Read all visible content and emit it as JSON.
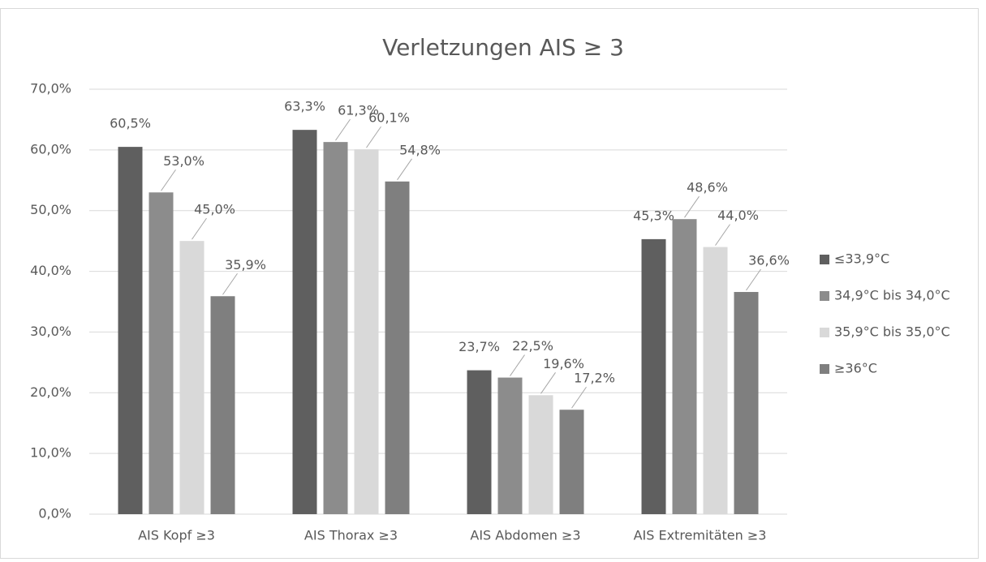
{
  "chart_data": {
    "type": "bar",
    "title": "Verletzungen AIS ≥ 3",
    "categories": [
      "AIS Kopf ≥3",
      "AIS Thorax ≥3",
      "AIS Abdomen ≥3",
      "AIS Extremitäten ≥3"
    ],
    "series": [
      {
        "name": "≤33,9°C",
        "color": "#5f5f5f",
        "values": [
          60.5,
          63.3,
          23.7,
          45.3
        ],
        "value_labels": [
          "60,5%",
          "63,3%",
          "23,7%",
          "45,3%"
        ]
      },
      {
        "name": "34,9°C bis 34,0°C",
        "color": "#8c8c8c",
        "values": [
          53.0,
          61.3,
          22.5,
          48.6
        ],
        "value_labels": [
          "53,0%",
          "61,3%",
          "22,5%",
          "48,6%"
        ]
      },
      {
        "name": "35,9°C bis 35,0°C",
        "color": "#d9d9d9",
        "values": [
          45.0,
          60.1,
          19.6,
          44.0
        ],
        "value_labels": [
          "45,0%",
          "60,1%",
          "19,6%",
          "44,0%"
        ]
      },
      {
        "name": "≥36°C",
        "color": "#7f7f7f",
        "values": [
          35.9,
          54.8,
          17.2,
          36.6
        ],
        "value_labels": [
          "35,9%",
          "54,8%",
          "17,2%",
          "36,6%"
        ]
      }
    ],
    "ylim": [
      0,
      70
    ],
    "yticks": [
      {
        "value": 0,
        "label": "0,0%"
      },
      {
        "value": 10,
        "label": "10,0%"
      },
      {
        "value": 20,
        "label": "20,0%"
      },
      {
        "value": 30,
        "label": "30,0%"
      },
      {
        "value": 40,
        "label": "40,0%"
      },
      {
        "value": 50,
        "label": "50,0%"
      },
      {
        "value": 60,
        "label": "60,0%"
      },
      {
        "value": 70,
        "label": "70,0%"
      }
    ],
    "grid": true,
    "legend": "right"
  }
}
